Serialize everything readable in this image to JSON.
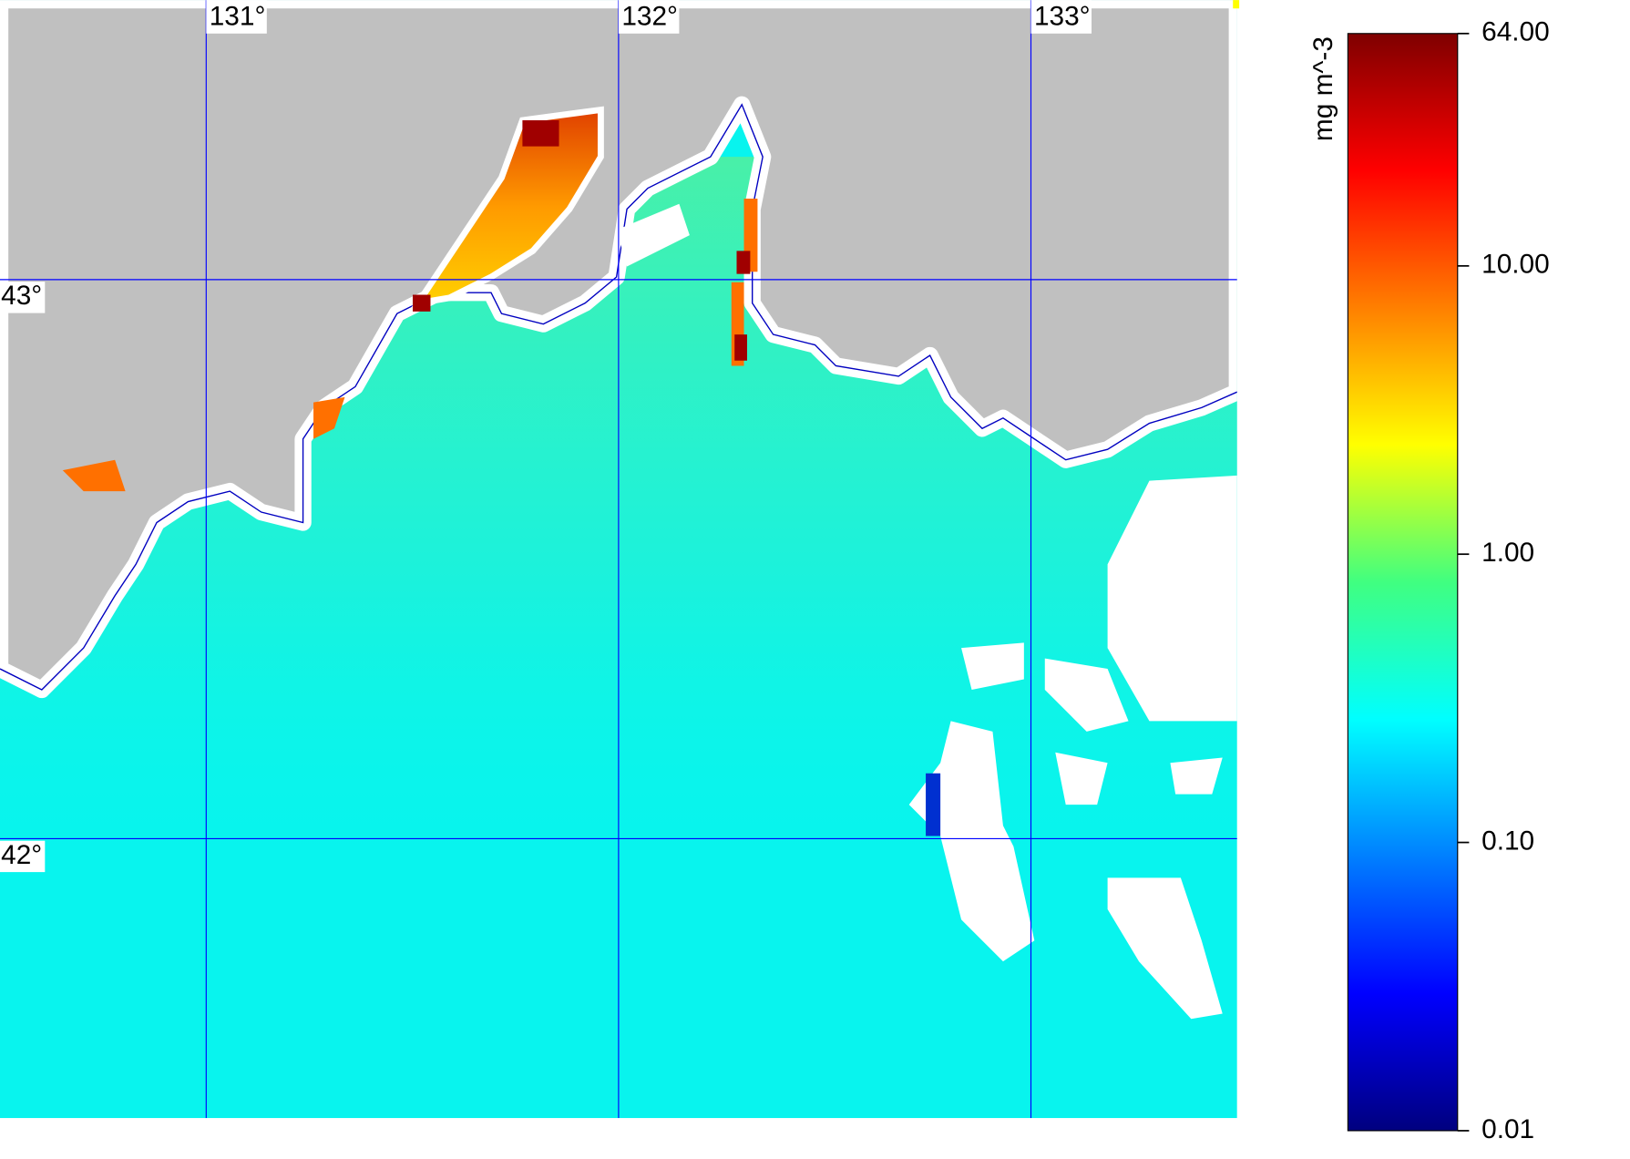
{
  "map": {
    "xlim": [
      130.5,
      133.5
    ],
    "ylim": [
      41.5,
      43.5
    ],
    "xticks": [
      {
        "value": 131,
        "label": "131°"
      },
      {
        "value": 132,
        "label": "132°"
      },
      {
        "value": 133,
        "label": "133°"
      }
    ],
    "yticks": [
      {
        "value": 43,
        "label": "43°"
      },
      {
        "value": 42,
        "label": "42°"
      }
    ],
    "grid": true,
    "grid_color": "#0000ff"
  },
  "colorbar": {
    "label": "mg m^-3",
    "scale": "log",
    "lim": [
      0.01,
      64
    ],
    "ticks": [
      {
        "value": 64,
        "label": "64.00"
      },
      {
        "value": 10,
        "label": "10.00"
      },
      {
        "value": 1,
        "label": "1.00"
      },
      {
        "value": 0.1,
        "label": "0.10"
      },
      {
        "value": 0.01,
        "label": "0.01"
      }
    ]
  }
}
